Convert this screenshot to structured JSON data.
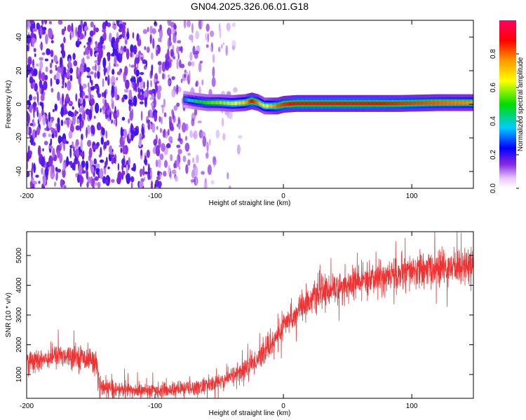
{
  "figure": {
    "title": "GN04.2025.326.06.01.G18"
  },
  "chart_data": [
    {
      "type": "heatmap",
      "title": "GN04.2025.326.06.01.G18",
      "xlabel": "Height of straight line (km)",
      "ylabel": "Frequency (Hz)",
      "xlim": [
        -200,
        148
      ],
      "ylim": [
        -50,
        50
      ],
      "x_ticks": [
        -200,
        -100,
        0,
        100
      ],
      "y_ticks": [
        -40,
        -20,
        0,
        20,
        40
      ],
      "x_tick_labels": [
        "-200",
        "-100",
        "0",
        "100"
      ],
      "y_tick_labels": [
        "-40",
        "-20",
        "0",
        "20",
        "40"
      ],
      "colorbar": {
        "label": "Normalized spectral amplitude",
        "range": [
          0,
          1
        ],
        "ticks": [
          0,
          0.2,
          0.4,
          0.6,
          0.8
        ],
        "tick_labels": [
          "0.0",
          "0.2",
          "0.4",
          "0.6",
          "0.8"
        ],
        "colormap": "rainbow (purple-blue-cyan-green-yellow-red-magenta)"
      },
      "features": {
        "noise_region_x": [
          -200,
          -55
        ],
        "noise_amplitude_approx": 0.1,
        "main_line": {
          "x": [
            -78,
            -70,
            -60,
            -50,
            -40,
            -30,
            -25,
            -20,
            -15,
            -10,
            -5,
            0,
            10,
            30,
            60,
            90,
            120,
            148
          ],
          "frequency": [
            3,
            2,
            1,
            1,
            0.5,
            1,
            2,
            1,
            -1,
            -1,
            -1,
            0,
            0.5,
            0.5,
            0.5,
            0.5,
            1,
            1
          ],
          "amplitude": [
            0.25,
            0.4,
            0.5,
            0.55,
            0.6,
            0.7,
            0.9,
            0.75,
            0.6,
            0.7,
            0.8,
            0.85,
            0.9,
            0.9,
            0.9,
            0.85,
            0.8,
            0.75
          ]
        }
      },
      "grid": false
    },
    {
      "type": "line",
      "xlabel": "Height of straight line (km)",
      "ylabel": "SNR (10 * v/v)",
      "xlim": [
        -200,
        148
      ],
      "ylim": [
        200,
        5800
      ],
      "x_ticks": [
        -200,
        -100,
        0,
        100
      ],
      "y_ticks": [
        1000,
        2000,
        3000,
        4000,
        5000
      ],
      "x_tick_labels": [
        "-200",
        "-100",
        "0",
        "100"
      ],
      "y_tick_labels": [
        "1000",
        "2000",
        "3000",
        "4000",
        "5000"
      ],
      "color": "#ee3333",
      "trend": {
        "x": [
          -200,
          -190,
          -180,
          -170,
          -160,
          -150,
          -145,
          -143,
          -130,
          -110,
          -90,
          -70,
          -60,
          -50,
          -40,
          -30,
          -20,
          -10,
          0,
          10,
          20,
          30,
          40,
          50,
          60,
          80,
          100,
          120,
          148
        ],
        "y": [
          1400,
          1500,
          1600,
          1650,
          1600,
          1500,
          1350,
          550,
          500,
          450,
          480,
          550,
          620,
          750,
          950,
          1200,
          1500,
          2000,
          2600,
          3100,
          3500,
          3750,
          3900,
          4000,
          4100,
          4300,
          4450,
          4550,
          4700
        ],
        "noise_halfwidth": [
          350,
          350,
          350,
          350,
          350,
          350,
          350,
          300,
          250,
          220,
          220,
          250,
          260,
          280,
          300,
          330,
          360,
          380,
          400,
          420,
          440,
          460,
          480,
          480,
          480,
          500,
          520,
          540,
          560
        ]
      },
      "grid": false
    }
  ]
}
